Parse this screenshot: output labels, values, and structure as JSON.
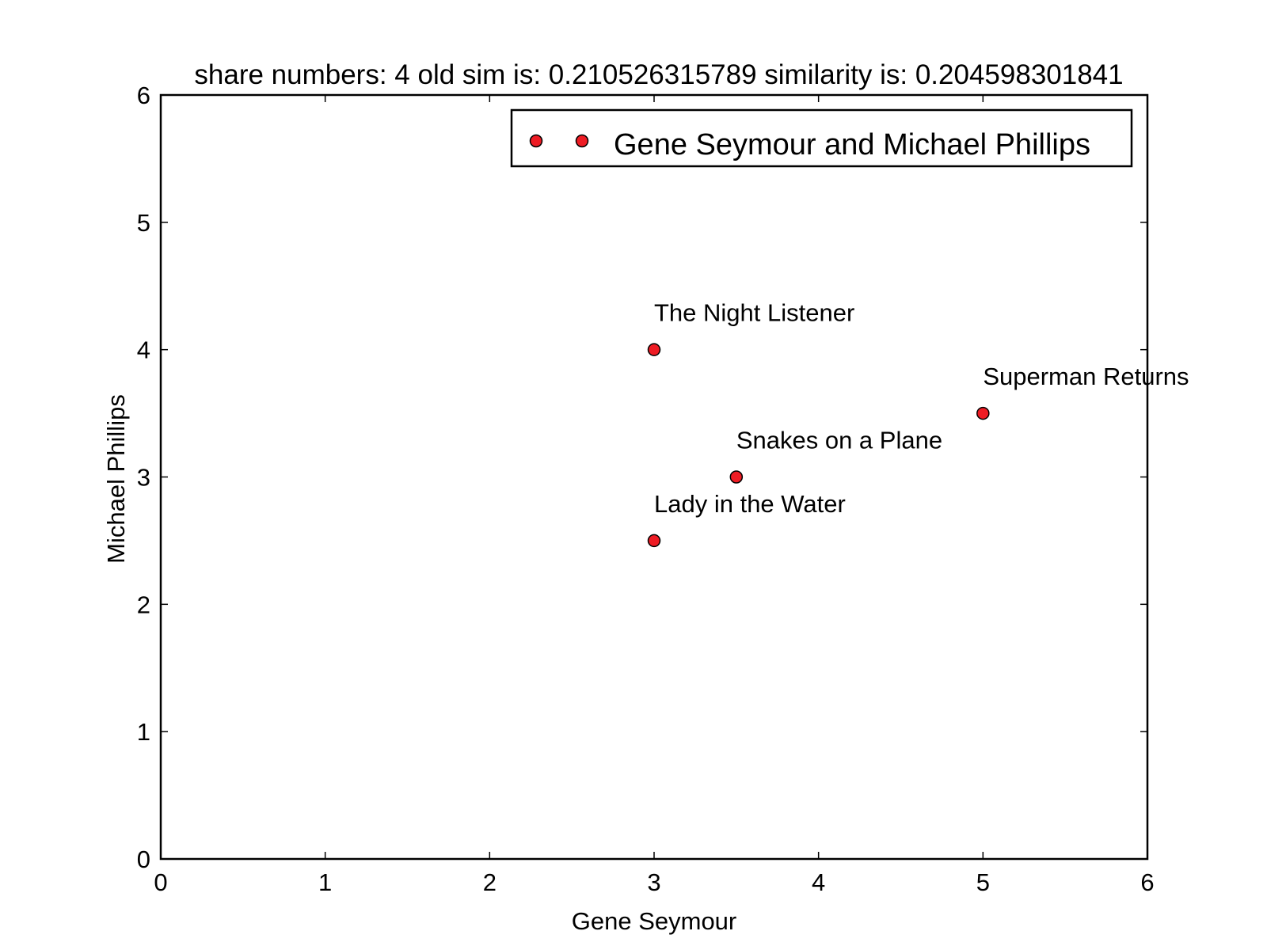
{
  "chart_data": {
    "type": "scatter",
    "title": "share numbers: 4 old sim is: 0.210526315789 similarity is: 0.204598301841",
    "xlabel": "Gene Seymour",
    "ylabel": "Michael Phillips",
    "xlim": [
      0,
      6
    ],
    "ylim": [
      0,
      6
    ],
    "x_ticks": [
      "0",
      "1",
      "2",
      "3",
      "4",
      "5",
      "6"
    ],
    "y_ticks": [
      "0",
      "1",
      "2",
      "3",
      "4",
      "5",
      "6"
    ],
    "grid": false,
    "legend_position": "top-right",
    "marker_color": "#ee1c24",
    "series": [
      {
        "name": "Gene Seymour and Michael Phillips",
        "points": [
          {
            "label": "Lady in the Water",
            "x": 3.0,
            "y": 2.5
          },
          {
            "label": "Snakes on a Plane",
            "x": 3.5,
            "y": 3.0
          },
          {
            "label": "Superman Returns",
            "x": 5.0,
            "y": 3.5
          },
          {
            "label": "The Night Listener",
            "x": 3.0,
            "y": 4.0
          }
        ]
      }
    ]
  }
}
